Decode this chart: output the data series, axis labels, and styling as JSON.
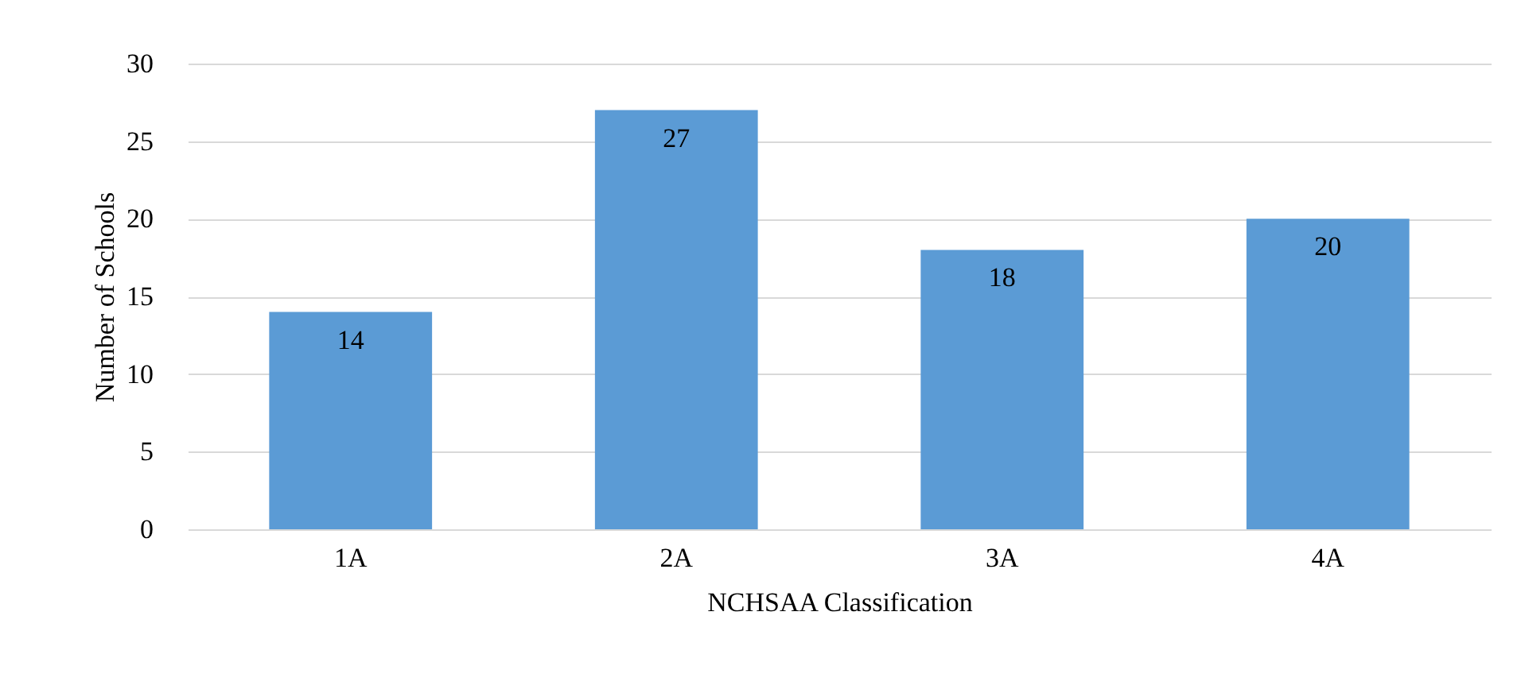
{
  "chart_data": {
    "type": "bar",
    "xlabel": "NCHSAA Classification",
    "ylabel": "Number of Schools",
    "categories": [
      "1A",
      "2A",
      "3A",
      "4A"
    ],
    "values": [
      14,
      27,
      18,
      20
    ],
    "color": "#5b9bd5",
    "ylim": [
      0,
      30
    ],
    "yticks": [
      0,
      5,
      10,
      15,
      20,
      25,
      30
    ],
    "grid": "y",
    "data_labels": true
  }
}
